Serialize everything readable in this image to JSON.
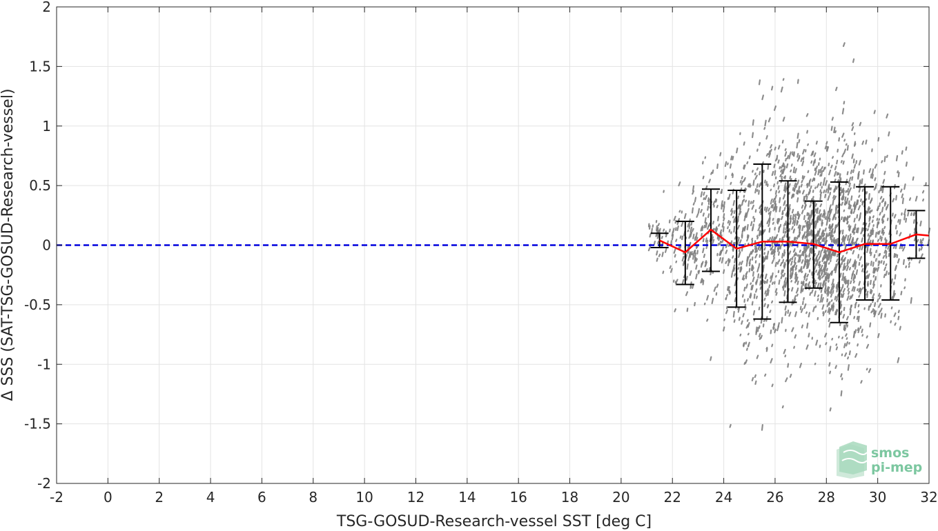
{
  "chart_data": {
    "type": "scatter",
    "title": "",
    "xlabel": "TSG-GOSUD-Research-vessel SST [deg C]",
    "ylabel": "Δ SSS (SAT-TSG-GOSUD-Research-vessel)",
    "xlim": [
      -2,
      32
    ],
    "ylim": [
      -2,
      2
    ],
    "xticks": [
      -2,
      0,
      2,
      4,
      6,
      8,
      10,
      12,
      14,
      16,
      18,
      20,
      22,
      24,
      26,
      28,
      30,
      32
    ],
    "yticks": [
      -2,
      -1.5,
      -1,
      -0.5,
      0,
      0.5,
      1,
      1.5,
      2
    ],
    "xtick_labels": [
      "-2",
      "0",
      "2",
      "4",
      "6",
      "8",
      "10",
      "12",
      "14",
      "16",
      "18",
      "20",
      "22",
      "24",
      "26",
      "28",
      "30",
      "32"
    ],
    "ytick_labels": [
      "-2",
      "-1.5",
      "-1",
      "-0.5",
      "0",
      "0.5",
      "1",
      "1.5",
      "2"
    ],
    "grid": true,
    "reference_line": {
      "y": 0,
      "style": "dashed",
      "color": "#0000dd"
    },
    "scatter_color": "#808080",
    "mean_line_color": "#ff0000",
    "errorbar_color": "#000000",
    "scatter_clusters": [
      {
        "x": 21.5,
        "y": 0.05,
        "sx": 0.35,
        "sy": 0.07,
        "n": 40
      },
      {
        "x": 22.5,
        "y": -0.05,
        "sx": 0.4,
        "sy": 0.22,
        "n": 90
      },
      {
        "x": 23.5,
        "y": 0.1,
        "sx": 0.4,
        "sy": 0.28,
        "n": 120
      },
      {
        "x": 24.5,
        "y": 0.0,
        "sx": 0.45,
        "sy": 0.38,
        "n": 170
      },
      {
        "x": 25.5,
        "y": 0.05,
        "sx": 0.45,
        "sy": 0.55,
        "n": 220
      },
      {
        "x": 26.5,
        "y": 0.05,
        "sx": 0.45,
        "sy": 0.45,
        "n": 260
      },
      {
        "x": 27.5,
        "y": 0.02,
        "sx": 0.45,
        "sy": 0.33,
        "n": 380
      },
      {
        "x": 28.5,
        "y": -0.05,
        "sx": 0.45,
        "sy": 0.48,
        "n": 380
      },
      {
        "x": 29.5,
        "y": 0.02,
        "sx": 0.45,
        "sy": 0.4,
        "n": 220
      },
      {
        "x": 30.5,
        "y": 0.02,
        "sx": 0.45,
        "sy": 0.4,
        "n": 130
      },
      {
        "x": 31.6,
        "y": 0.08,
        "sx": 0.35,
        "sy": 0.18,
        "n": 50
      }
    ],
    "bins": [
      {
        "x": 21.5,
        "mean": 0.04,
        "lower": -0.02,
        "upper": 0.1
      },
      {
        "x": 22.5,
        "mean": -0.06,
        "lower": -0.33,
        "upper": 0.2
      },
      {
        "x": 23.5,
        "mean": 0.13,
        "lower": -0.22,
        "upper": 0.47
      },
      {
        "x": 24.5,
        "mean": -0.03,
        "lower": -0.52,
        "upper": 0.46
      },
      {
        "x": 25.5,
        "mean": 0.03,
        "lower": -0.62,
        "upper": 0.68
      },
      {
        "x": 26.5,
        "mean": 0.03,
        "lower": -0.48,
        "upper": 0.54
      },
      {
        "x": 27.5,
        "mean": 0.01,
        "lower": -0.36,
        "upper": 0.37
      },
      {
        "x": 28.5,
        "mean": -0.06,
        "lower": -0.65,
        "upper": 0.53
      },
      {
        "x": 29.5,
        "mean": 0.01,
        "lower": -0.46,
        "upper": 0.49
      },
      {
        "x": 30.5,
        "mean": 0.01,
        "lower": -0.46,
        "upper": 0.49
      },
      {
        "x": 31.5,
        "mean": 0.09,
        "lower": -0.11,
        "upper": 0.29
      },
      {
        "x": 32.0,
        "mean": 0.08,
        "lower": null,
        "upper": null
      }
    ]
  },
  "logo": {
    "line1": "smos",
    "line2": "pi-mep",
    "color": "#7cc7a0"
  }
}
